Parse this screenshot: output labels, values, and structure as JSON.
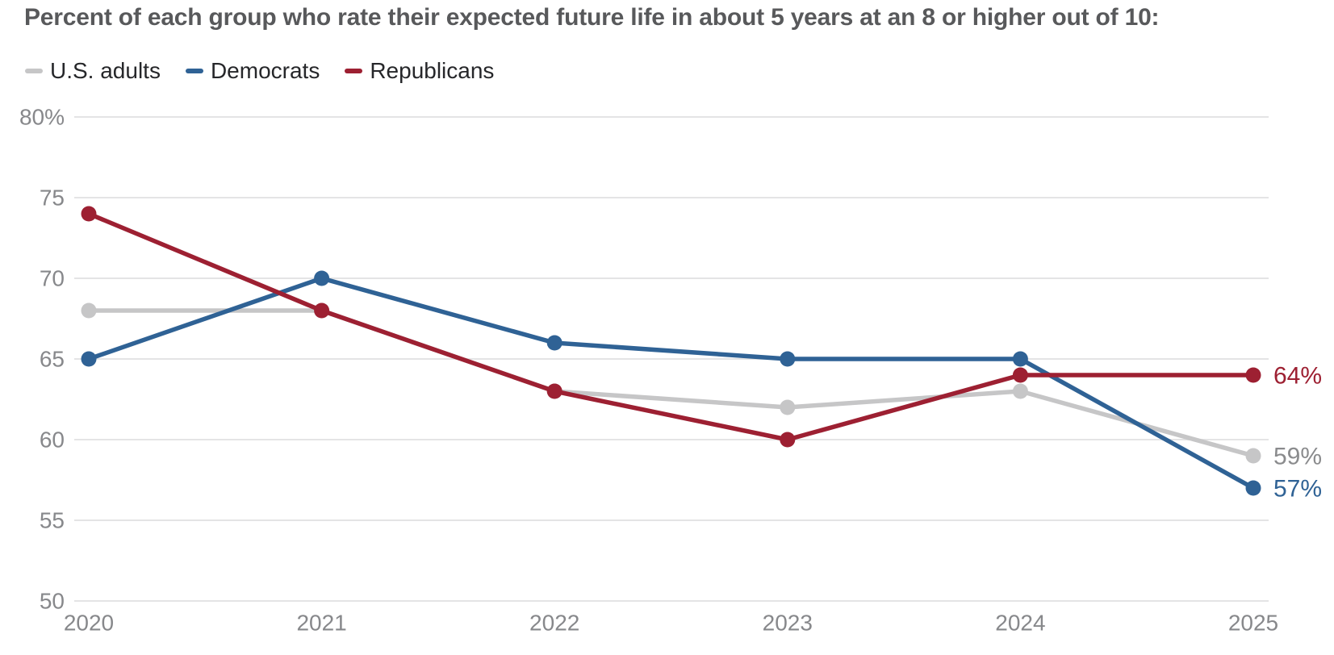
{
  "title": "Percent of each group who rate their expected future life in about 5 years at an 8 or higher out of 10:",
  "legend": [
    {
      "label": "U.S. adults",
      "color": "#c6c6c7"
    },
    {
      "label": "Democrats",
      "color": "#2f6295"
    },
    {
      "label": "Republicans",
      "color": "#9d2032"
    }
  ],
  "chart_data": {
    "type": "line",
    "categories": [
      "2020",
      "2021",
      "2022",
      "2023",
      "2024",
      "2025"
    ],
    "series": [
      {
        "name": "U.S. adults",
        "color": "#c6c6c7",
        "values": [
          68,
          68,
          63,
          62,
          63,
          59
        ],
        "end_label": "59%",
        "end_label_color": "#8a8b8d"
      },
      {
        "name": "Democrats",
        "color": "#2f6295",
        "values": [
          65,
          70,
          66,
          65,
          65,
          57
        ],
        "end_label": "57%",
        "end_label_color": "#2f6295"
      },
      {
        "name": "Republicans",
        "color": "#9d2032",
        "values": [
          74,
          68,
          63,
          60,
          64,
          64
        ],
        "end_label": "64%",
        "end_label_color": "#9d2032"
      }
    ],
    "title": "Percent of each group who rate their expected future life in about 5 years at an 8 or higher out of 10:",
    "xlabel": "",
    "ylabel": "",
    "ylim": [
      50,
      80
    ],
    "yticks": [
      80,
      75,
      70,
      65,
      60,
      55,
      50
    ],
    "ytick_labels": [
      "80%",
      "75",
      "70",
      "65",
      "60",
      "55",
      "50"
    ],
    "grid": "horizontal",
    "gridline_color": "#e4e4e5",
    "legend_position": "top-left",
    "marker": "circle"
  }
}
